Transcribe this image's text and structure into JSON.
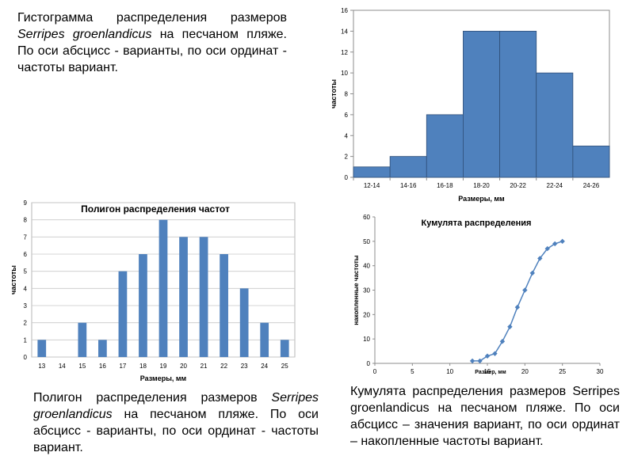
{
  "captions": {
    "histogram": {
      "part1": "Гистограмма распределения размеров ",
      "species": "Serripes groenlandicus",
      "part2": " на песчаном пляже. По оси абсцисс - варианты, по оси ординат - частоты вариант."
    },
    "polygon": {
      "part1": "Полигон распределения размеров ",
      "species": "Serripes groenlandicus",
      "part2": " на песчаном пляже. По оси абсцисс - варианты, по оси ординат - частоты вариант."
    },
    "cumulative": {
      "text": "Кумулята распределения размеров Serripes groenlandicus на песчаном пляже. По оси абсцисс – значения вариант, по оси ординат – накопленные частоты вариант."
    }
  },
  "chart_data": [
    {
      "type": "bar",
      "title": "",
      "xlabel": "Размеры, мм",
      "ylabel": "частоты",
      "categories": [
        "12-14",
        "14-16",
        "16-18",
        "18-20",
        "20-22",
        "22-24",
        "24-26"
      ],
      "values": [
        1,
        2,
        6,
        14,
        14,
        10,
        3
      ],
      "ylim": [
        0,
        16
      ],
      "yticks": [
        0,
        2,
        4,
        6,
        8,
        10,
        12,
        14,
        16
      ],
      "grid": false,
      "bar_color": "#4F81BD"
    },
    {
      "type": "bar",
      "title": "Полигон распределения частот",
      "xlabel": "Размеры, мм",
      "ylabel": "частоты",
      "categories": [
        "13",
        "14",
        "15",
        "16",
        "17",
        "18",
        "19",
        "20",
        "21",
        "22",
        "23",
        "24",
        "25"
      ],
      "values": [
        1,
        0,
        2,
        1,
        5,
        6,
        8,
        7,
        7,
        6,
        4,
        2,
        1
      ],
      "ylim": [
        0,
        9
      ],
      "yticks": [
        0,
        1,
        2,
        3,
        4,
        5,
        6,
        7,
        8,
        9
      ],
      "grid": true,
      "bar_color": "#4F81BD"
    },
    {
      "type": "line",
      "title": "Кумулята распределения",
      "xlabel": "Размер, мм",
      "ylabel": "накопленные частоты",
      "x": [
        13,
        14,
        15,
        16,
        17,
        18,
        19,
        20,
        21,
        22,
        23,
        24,
        25
      ],
      "y": [
        1,
        1,
        3,
        4,
        9,
        15,
        23,
        30,
        37,
        43,
        47,
        49,
        50
      ],
      "xlim": [
        0,
        30
      ],
      "ylim": [
        0,
        60
      ],
      "xticks": [
        0,
        5,
        10,
        15,
        20,
        25,
        30
      ],
      "yticks": [
        0,
        10,
        20,
        30,
        40,
        50,
        60
      ],
      "grid": false,
      "line_color": "#4F81BD",
      "marker": "diamond"
    }
  ]
}
